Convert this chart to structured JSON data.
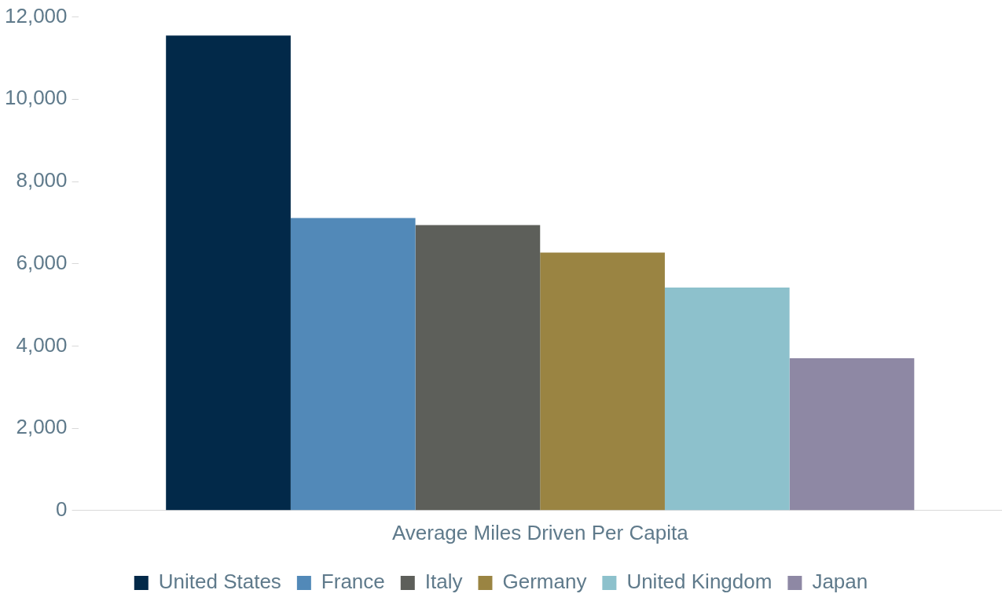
{
  "chart_data": {
    "type": "bar",
    "categories": [
      "Average Miles Driven Per Capita"
    ],
    "series": [
      {
        "name": "United States",
        "color": "#022949",
        "values": [
          11550
        ]
      },
      {
        "name": "France",
        "color": "#5289b8",
        "values": [
          7110
        ]
      },
      {
        "name": "Italy",
        "color": "#5d5f5a",
        "values": [
          6940
        ]
      },
      {
        "name": "Germany",
        "color": "#9a8442",
        "values": [
          6270
        ]
      },
      {
        "name": "United Kingdom",
        "color": "#8dc1cc",
        "values": [
          5420
        ]
      },
      {
        "name": "Japan",
        "color": "#8e88a4",
        "values": [
          3700
        ]
      }
    ],
    "ylim": [
      0,
      12000
    ],
    "yticks": [
      0,
      {
        "value": 2000,
        "label": "2,000"
      },
      {
        "value": 4000,
        "label": "4,000"
      },
      {
        "value": 6000,
        "label": "6,000"
      },
      {
        "value": 8000,
        "label": "8,000"
      },
      {
        "value": 10000,
        "label": "10,000"
      },
      {
        "value": 12000,
        "label": "12,000"
      }
    ],
    "grid": false,
    "legend": "bottom"
  }
}
